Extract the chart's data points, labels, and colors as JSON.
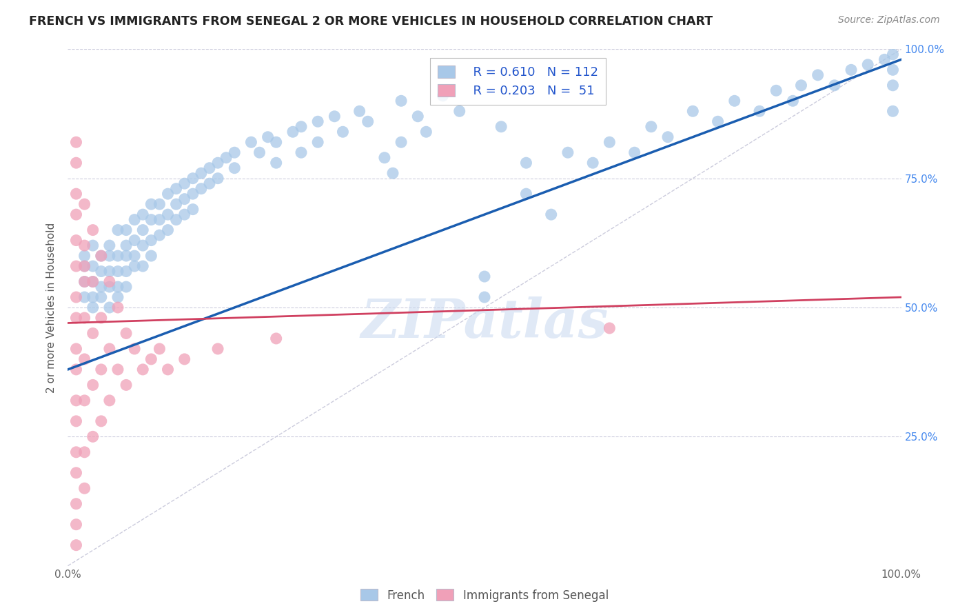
{
  "title": "FRENCH VS IMMIGRANTS FROM SENEGAL 2 OR MORE VEHICLES IN HOUSEHOLD CORRELATION CHART",
  "source": "Source: ZipAtlas.com",
  "ylabel": "2 or more Vehicles in Household",
  "xlim": [
    0,
    1.0
  ],
  "ylim": [
    0,
    1.0
  ],
  "legend_r_french": "R = 0.610",
  "legend_n_french": "N = 112",
  "legend_r_senegal": "R = 0.203",
  "legend_n_senegal": "N =  51",
  "french_color": "#a8c8e8",
  "senegal_color": "#f0a0b8",
  "french_line_color": "#1a5db0",
  "senegal_line_color": "#d04060",
  "diagonal_color": "#ccccdd",
  "watermark": "ZIPatlas",
  "french_scatter": [
    [
      0.02,
      0.6
    ],
    [
      0.02,
      0.58
    ],
    [
      0.02,
      0.55
    ],
    [
      0.02,
      0.52
    ],
    [
      0.03,
      0.62
    ],
    [
      0.03,
      0.58
    ],
    [
      0.03,
      0.55
    ],
    [
      0.03,
      0.52
    ],
    [
      0.03,
      0.5
    ],
    [
      0.04,
      0.6
    ],
    [
      0.04,
      0.57
    ],
    [
      0.04,
      0.54
    ],
    [
      0.04,
      0.52
    ],
    [
      0.05,
      0.62
    ],
    [
      0.05,
      0.6
    ],
    [
      0.05,
      0.57
    ],
    [
      0.05,
      0.54
    ],
    [
      0.05,
      0.5
    ],
    [
      0.06,
      0.65
    ],
    [
      0.06,
      0.6
    ],
    [
      0.06,
      0.57
    ],
    [
      0.06,
      0.54
    ],
    [
      0.06,
      0.52
    ],
    [
      0.07,
      0.65
    ],
    [
      0.07,
      0.62
    ],
    [
      0.07,
      0.6
    ],
    [
      0.07,
      0.57
    ],
    [
      0.07,
      0.54
    ],
    [
      0.08,
      0.67
    ],
    [
      0.08,
      0.63
    ],
    [
      0.08,
      0.6
    ],
    [
      0.08,
      0.58
    ],
    [
      0.09,
      0.68
    ],
    [
      0.09,
      0.65
    ],
    [
      0.09,
      0.62
    ],
    [
      0.09,
      0.58
    ],
    [
      0.1,
      0.7
    ],
    [
      0.1,
      0.67
    ],
    [
      0.1,
      0.63
    ],
    [
      0.1,
      0.6
    ],
    [
      0.11,
      0.7
    ],
    [
      0.11,
      0.67
    ],
    [
      0.11,
      0.64
    ],
    [
      0.12,
      0.72
    ],
    [
      0.12,
      0.68
    ],
    [
      0.12,
      0.65
    ],
    [
      0.13,
      0.73
    ],
    [
      0.13,
      0.7
    ],
    [
      0.13,
      0.67
    ],
    [
      0.14,
      0.74
    ],
    [
      0.14,
      0.71
    ],
    [
      0.14,
      0.68
    ],
    [
      0.15,
      0.75
    ],
    [
      0.15,
      0.72
    ],
    [
      0.15,
      0.69
    ],
    [
      0.16,
      0.76
    ],
    [
      0.16,
      0.73
    ],
    [
      0.17,
      0.77
    ],
    [
      0.17,
      0.74
    ],
    [
      0.18,
      0.78
    ],
    [
      0.18,
      0.75
    ],
    [
      0.19,
      0.79
    ],
    [
      0.2,
      0.8
    ],
    [
      0.2,
      0.77
    ],
    [
      0.22,
      0.82
    ],
    [
      0.23,
      0.8
    ],
    [
      0.24,
      0.83
    ],
    [
      0.25,
      0.82
    ],
    [
      0.25,
      0.78
    ],
    [
      0.27,
      0.84
    ],
    [
      0.28,
      0.85
    ],
    [
      0.28,
      0.8
    ],
    [
      0.3,
      0.86
    ],
    [
      0.3,
      0.82
    ],
    [
      0.32,
      0.87
    ],
    [
      0.33,
      0.84
    ],
    [
      0.35,
      0.88
    ],
    [
      0.36,
      0.86
    ],
    [
      0.38,
      0.79
    ],
    [
      0.39,
      0.76
    ],
    [
      0.4,
      0.82
    ],
    [
      0.4,
      0.9
    ],
    [
      0.42,
      0.87
    ],
    [
      0.43,
      0.84
    ],
    [
      0.45,
      0.91
    ],
    [
      0.47,
      0.88
    ],
    [
      0.5,
      0.56
    ],
    [
      0.5,
      0.52
    ],
    [
      0.52,
      0.85
    ],
    [
      0.55,
      0.78
    ],
    [
      0.55,
      0.72
    ],
    [
      0.58,
      0.68
    ],
    [
      0.6,
      0.8
    ],
    [
      0.63,
      0.78
    ],
    [
      0.65,
      0.82
    ],
    [
      0.68,
      0.8
    ],
    [
      0.7,
      0.85
    ],
    [
      0.72,
      0.83
    ],
    [
      0.75,
      0.88
    ],
    [
      0.78,
      0.86
    ],
    [
      0.8,
      0.9
    ],
    [
      0.83,
      0.88
    ],
    [
      0.85,
      0.92
    ],
    [
      0.87,
      0.9
    ],
    [
      0.88,
      0.93
    ],
    [
      0.9,
      0.95
    ],
    [
      0.92,
      0.93
    ],
    [
      0.94,
      0.96
    ],
    [
      0.96,
      0.97
    ],
    [
      0.98,
      0.98
    ],
    [
      0.99,
      0.99
    ],
    [
      0.99,
      0.96
    ],
    [
      0.99,
      0.93
    ],
    [
      0.99,
      0.88
    ]
  ],
  "senegal_scatter": [
    [
      0.01,
      0.82
    ],
    [
      0.01,
      0.78
    ],
    [
      0.01,
      0.72
    ],
    [
      0.01,
      0.68
    ],
    [
      0.01,
      0.63
    ],
    [
      0.01,
      0.58
    ],
    [
      0.01,
      0.52
    ],
    [
      0.01,
      0.48
    ],
    [
      0.01,
      0.42
    ],
    [
      0.01,
      0.38
    ],
    [
      0.01,
      0.32
    ],
    [
      0.01,
      0.28
    ],
    [
      0.01,
      0.22
    ],
    [
      0.01,
      0.18
    ],
    [
      0.01,
      0.12
    ],
    [
      0.01,
      0.08
    ],
    [
      0.01,
      0.04
    ],
    [
      0.02,
      0.7
    ],
    [
      0.02,
      0.62
    ],
    [
      0.02,
      0.55
    ],
    [
      0.02,
      0.48
    ],
    [
      0.02,
      0.4
    ],
    [
      0.02,
      0.32
    ],
    [
      0.02,
      0.22
    ],
    [
      0.02,
      0.15
    ],
    [
      0.03,
      0.65
    ],
    [
      0.03,
      0.55
    ],
    [
      0.03,
      0.45
    ],
    [
      0.03,
      0.35
    ],
    [
      0.03,
      0.25
    ],
    [
      0.04,
      0.6
    ],
    [
      0.04,
      0.48
    ],
    [
      0.04,
      0.38
    ],
    [
      0.04,
      0.28
    ],
    [
      0.05,
      0.55
    ],
    [
      0.05,
      0.42
    ],
    [
      0.05,
      0.32
    ],
    [
      0.06,
      0.5
    ],
    [
      0.06,
      0.38
    ],
    [
      0.07,
      0.45
    ],
    [
      0.07,
      0.35
    ],
    [
      0.08,
      0.42
    ],
    [
      0.09,
      0.38
    ],
    [
      0.1,
      0.4
    ],
    [
      0.11,
      0.42
    ],
    [
      0.12,
      0.38
    ],
    [
      0.14,
      0.4
    ],
    [
      0.18,
      0.42
    ],
    [
      0.25,
      0.44
    ],
    [
      0.65,
      0.46
    ],
    [
      0.02,
      0.58
    ]
  ],
  "french_regression": [
    0.0,
    0.38,
    1.0,
    0.98
  ],
  "senegal_regression": [
    0.0,
    0.47,
    1.0,
    0.52
  ]
}
